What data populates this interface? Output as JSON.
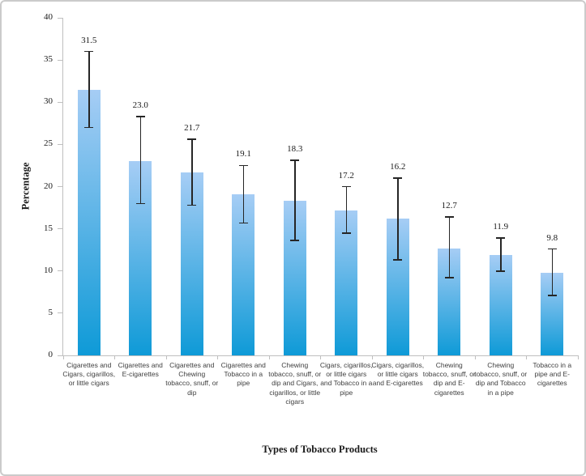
{
  "frame": {
    "background": "#ffffff",
    "border_color": "#cbcbcb"
  },
  "chart_data": {
    "type": "bar",
    "title": "",
    "xlabel": "Types of Tobacco Products",
    "ylabel": "Percentage",
    "ylim": [
      0,
      40
    ],
    "yticks": [
      0,
      5,
      10,
      15,
      20,
      25,
      30,
      35,
      40
    ],
    "grid": false,
    "legend": null,
    "categories": [
      "Cigarettes and Cigars, cigarillos, or little cigars",
      "Cigarettes and E-cigarettes",
      "Cigarettes and Chewing tobacco, snuff, or dip",
      "Cigarettes and Tobacco in a pipe",
      "Chewing tobacco, snuff, or dip and Cigars, cigarillos, or little cigars",
      "Cigars, cigarillos, or little cigars and Tobacco in a pipe",
      "Cigars, cigarillos, or little cigars and E-cigarettes",
      "Chewing tobacco, snuff, or dip and E-cigarettes",
      "Chewing tobacco, snuff, or dip and Tobacco in a pipe",
      "Tobacco in a pipe and E-cigarettes"
    ],
    "values": [
      31.5,
      23.0,
      21.7,
      19.1,
      18.3,
      17.2,
      16.2,
      12.7,
      11.9,
      9.8
    ],
    "value_labels": [
      "31.5",
      "23.0",
      "21.7",
      "19.1",
      "18.3",
      "17.2",
      "16.2",
      "12.7",
      "11.9",
      "9.8"
    ],
    "error_high": [
      36.0,
      28.3,
      25.6,
      22.5,
      23.1,
      20.0,
      21.0,
      16.4,
      13.9,
      12.6
    ],
    "error_low": [
      27.0,
      18.0,
      17.8,
      15.7,
      13.6,
      14.5,
      11.3,
      9.2,
      10.0,
      7.1
    ],
    "bar_color_top": "#a6cdf5",
    "bar_color_bottom": "#0e9ad7",
    "error_bar_color": "#262626",
    "axis_color": "#bfbfbf",
    "tick_label_color": "#1a1a1a",
    "category_label_color": "#3f3f3f"
  }
}
